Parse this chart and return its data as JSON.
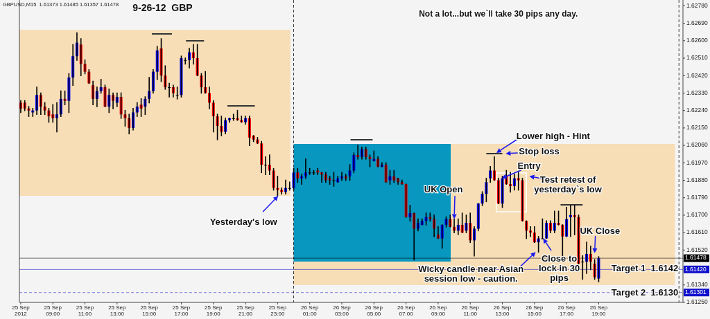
{
  "chart_data": {
    "type": "candlestick",
    "title": "9-26-12  GBP",
    "subtitle": "GBPUSD,M15  1.61373 1.61485 1.61357 1.61478",
    "x": [
      "2012-09-25T07:00",
      "2012-09-25T07:15",
      "2012-09-25T07:30",
      "2012-09-25T07:45",
      "2012-09-25T08:00",
      "2012-09-25T08:15",
      "2012-09-25T08:30",
      "2012-09-25T08:45",
      "2012-09-25T09:00",
      "2012-09-25T09:15",
      "2012-09-25T09:30",
      "2012-09-25T09:45",
      "2012-09-25T10:00",
      "2012-09-25T10:15",
      "2012-09-25T10:30",
      "2012-09-25T10:45",
      "2012-09-25T11:00",
      "2012-09-25T11:15",
      "2012-09-25T11:30",
      "2012-09-25T11:45",
      "2012-09-25T12:00",
      "2012-09-25T12:15",
      "2012-09-25T12:30",
      "2012-09-25T12:45",
      "2012-09-25T13:00",
      "2012-09-25T13:15",
      "2012-09-25T13:30",
      "2012-09-25T13:45",
      "2012-09-25T14:00",
      "2012-09-25T14:15",
      "2012-09-25T14:30",
      "2012-09-25T14:45",
      "2012-09-25T15:00",
      "2012-09-25T15:15",
      "2012-09-25T15:30",
      "2012-09-25T15:45",
      "2012-09-25T16:00",
      "2012-09-25T16:15",
      "2012-09-25T16:30",
      "2012-09-25T16:45",
      "2012-09-25T17:00",
      "2012-09-25T17:15",
      "2012-09-25T17:30",
      "2012-09-25T17:45",
      "2012-09-25T18:00",
      "2012-09-25T18:15",
      "2012-09-25T18:30",
      "2012-09-25T18:45",
      "2012-09-25T19:00",
      "2012-09-25T19:15",
      "2012-09-25T19:30",
      "2012-09-25T19:45",
      "2012-09-25T20:00",
      "2012-09-25T20:15",
      "2012-09-25T20:30",
      "2012-09-25T20:45",
      "2012-09-25T21:00",
      "2012-09-25T21:15",
      "2012-09-25T21:30",
      "2012-09-25T21:45",
      "2012-09-25T22:00",
      "2012-09-25T22:15",
      "2012-09-25T22:30",
      "2012-09-25T22:45",
      "2012-09-25T23:00",
      "2012-09-25T23:15",
      "2012-09-25T23:30",
      "2012-09-25T23:45",
      "2012-09-26T00:00",
      "2012-09-26T00:15",
      "2012-09-26T00:30",
      "2012-09-26T00:45",
      "2012-09-26T01:00",
      "2012-09-26T01:15",
      "2012-09-26T01:30",
      "2012-09-26T01:45",
      "2012-09-26T02:00",
      "2012-09-26T02:15",
      "2012-09-26T02:30",
      "2012-09-26T02:45",
      "2012-09-26T03:00",
      "2012-09-26T03:15",
      "2012-09-26T03:30",
      "2012-09-26T03:45",
      "2012-09-26T04:00",
      "2012-09-26T04:15",
      "2012-09-26T04:30",
      "2012-09-26T04:45",
      "2012-09-26T05:00",
      "2012-09-26T05:15",
      "2012-09-26T05:30",
      "2012-09-26T05:45",
      "2012-09-26T06:00",
      "2012-09-26T06:15",
      "2012-09-26T06:30",
      "2012-09-26T06:45",
      "2012-09-26T07:00",
      "2012-09-26T07:15",
      "2012-09-26T07:30",
      "2012-09-26T07:45",
      "2012-09-26T08:00",
      "2012-09-26T08:15",
      "2012-09-26T08:30",
      "2012-09-26T08:45",
      "2012-09-26T09:00",
      "2012-09-26T09:15",
      "2012-09-26T09:30",
      "2012-09-26T09:45",
      "2012-09-26T10:00",
      "2012-09-26T10:15",
      "2012-09-26T10:30",
      "2012-09-26T10:45",
      "2012-09-26T11:00",
      "2012-09-26T11:15",
      "2012-09-26T11:30",
      "2012-09-26T11:45",
      "2012-09-26T12:00",
      "2012-09-26T12:15",
      "2012-09-26T12:30",
      "2012-09-26T12:45",
      "2012-09-26T13:00",
      "2012-09-26T13:15",
      "2012-09-26T13:30",
      "2012-09-26T13:45",
      "2012-09-26T14:00",
      "2012-09-26T14:15",
      "2012-09-26T14:30",
      "2012-09-26T14:45",
      "2012-09-26T15:00",
      "2012-09-26T15:15",
      "2012-09-26T15:30",
      "2012-09-26T15:45",
      "2012-09-26T16:00",
      "2012-09-26T16:15",
      "2012-09-26T16:30",
      "2012-09-26T16:45",
      "2012-09-26T17:00",
      "2012-09-26T17:15",
      "2012-09-26T17:30",
      "2012-09-26T17:45",
      "2012-09-26T18:00",
      "2012-09-26T18:15",
      "2012-09-26T18:30",
      "2012-09-26T18:45",
      "2012-09-26T19:00"
    ],
    "ohlc": [
      [
        1.6228,
        1.6229,
        1.6223,
        1.6225
      ],
      [
        1.6228,
        1.6229,
        1.6224,
        1.6225
      ],
      [
        1.6225,
        1.6226,
        1.6221,
        1.6224
      ],
      [
        1.6223,
        1.6225,
        1.6221,
        1.6224
      ],
      [
        1.6224,
        1.6236,
        1.6222,
        1.6232
      ],
      [
        1.6232,
        1.6233,
        1.6222,
        1.6226
      ],
      [
        1.6226,
        1.6228,
        1.6222,
        1.6224
      ],
      [
        1.6224,
        1.6225,
        1.6218,
        1.6221
      ],
      [
        1.6222,
        1.6227,
        1.6218,
        1.622
      ],
      [
        1.622,
        1.6228,
        1.6213,
        1.6222
      ],
      [
        1.6222,
        1.6234,
        1.6221,
        1.623
      ],
      [
        1.623,
        1.6234,
        1.6227,
        1.6229
      ],
      [
        1.6229,
        1.6243,
        1.6223,
        1.6241
      ],
      [
        1.6241,
        1.6258,
        1.6237,
        1.6252
      ],
      [
        1.6252,
        1.6264,
        1.625,
        1.6259
      ],
      [
        1.6258,
        1.6261,
        1.6242,
        1.6248
      ],
      [
        1.6248,
        1.625,
        1.6243,
        1.6244
      ],
      [
        1.6244,
        1.6245,
        1.6238,
        1.6238
      ],
      [
        1.6237,
        1.6239,
        1.6227,
        1.623
      ],
      [
        1.623,
        1.6236,
        1.6226,
        1.6234
      ],
      [
        1.6234,
        1.624,
        1.6233,
        1.6236
      ],
      [
        1.6236,
        1.6237,
        1.6226,
        1.6226
      ],
      [
        1.6226,
        1.6235,
        1.6223,
        1.6232
      ],
      [
        1.6232,
        1.6233,
        1.6225,
        1.6229
      ],
      [
        1.6228,
        1.6233,
        1.6226,
        1.6231
      ],
      [
        1.6231,
        1.6233,
        1.622,
        1.6222
      ],
      [
        1.6222,
        1.6224,
        1.6216,
        1.622
      ],
      [
        1.622,
        1.6222,
        1.6212,
        1.6215
      ],
      [
        1.6215,
        1.6225,
        1.6214,
        1.6223
      ],
      [
        1.6223,
        1.6228,
        1.6221,
        1.6226
      ],
      [
        1.6227,
        1.623,
        1.6221,
        1.6225
      ],
      [
        1.6226,
        1.6231,
        1.6222,
        1.623
      ],
      [
        1.623,
        1.6241,
        1.6228,
        1.6234
      ],
      [
        1.6234,
        1.6245,
        1.6233,
        1.6244
      ],
      [
        1.6244,
        1.6257,
        1.624,
        1.6255
      ],
      [
        1.6256,
        1.6261,
        1.6239,
        1.6242
      ],
      [
        1.6242,
        1.6247,
        1.6235,
        1.6236
      ],
      [
        1.6236,
        1.6238,
        1.6231,
        1.6236
      ],
      [
        1.6236,
        1.6237,
        1.6231,
        1.6233
      ],
      [
        1.6232,
        1.6236,
        1.623,
        1.6232
      ],
      [
        1.6232,
        1.6252,
        1.6231,
        1.6251
      ],
      [
        1.625,
        1.6251,
        1.6248,
        1.625
      ],
      [
        1.625,
        1.6256,
        1.6246,
        1.6254
      ],
      [
        1.6254,
        1.6258,
        1.6248,
        1.6251
      ],
      [
        1.6251,
        1.6258,
        1.6242,
        1.6242
      ],
      [
        1.6242,
        1.6243,
        1.6233,
        1.6236
      ],
      [
        1.6236,
        1.6244,
        1.6233,
        1.6233
      ],
      [
        1.6233,
        1.6236,
        1.6225,
        1.6228
      ],
      [
        1.6228,
        1.6229,
        1.6213,
        1.6221
      ],
      [
        1.6221,
        1.6222,
        1.6209,
        1.6216
      ],
      [
        1.6216,
        1.6221,
        1.6211,
        1.6213
      ],
      [
        1.6213,
        1.622,
        1.6212,
        1.6219
      ],
      [
        1.6219,
        1.622,
        1.6218,
        1.622
      ],
      [
        1.622,
        1.6222,
        1.6219,
        1.622
      ],
      [
        1.622,
        1.6224,
        1.6219,
        1.6219
      ],
      [
        1.6219,
        1.6221,
        1.6218,
        1.6218
      ],
      [
        1.6218,
        1.6221,
        1.6217,
        1.622
      ],
      [
        1.622,
        1.6221,
        1.6206,
        1.621
      ],
      [
        1.6211,
        1.6211,
        1.6208,
        1.6209
      ],
      [
        1.6209,
        1.621,
        1.6207,
        1.6207
      ],
      [
        1.6207,
        1.6208,
        1.6192,
        1.6196
      ],
      [
        1.6196,
        1.62,
        1.6191,
        1.6196
      ],
      [
        1.6196,
        1.6201,
        1.6191,
        1.6193
      ],
      [
        1.6193,
        1.6194,
        1.6183,
        1.6184
      ],
      [
        1.6184,
        1.619,
        1.618,
        1.6183
      ],
      [
        1.6183,
        1.6184,
        1.6181,
        1.6182
      ],
      [
        1.6182,
        1.6188,
        1.6181,
        1.6184
      ],
      [
        1.6184,
        1.6187,
        1.6183,
        1.6184
      ],
      [
        1.6184,
        1.6194,
        1.6183,
        1.6192
      ],
      [
        1.6192,
        1.6194,
        1.6187,
        1.6189
      ],
      [
        1.6189,
        1.6191,
        1.6186,
        1.619
      ],
      [
        1.619,
        1.6199,
        1.6189,
        1.6192
      ],
      [
        1.6192,
        1.6194,
        1.6191,
        1.6192
      ],
      [
        1.6192,
        1.6193,
        1.6191,
        1.6192
      ],
      [
        1.6193,
        1.6194,
        1.6191,
        1.6192
      ],
      [
        1.6192,
        1.6192,
        1.6187,
        1.6191
      ],
      [
        1.6191,
        1.6192,
        1.6187,
        1.6188
      ],
      [
        1.6189,
        1.619,
        1.6186,
        1.6188
      ],
      [
        1.6188,
        1.6192,
        1.6185,
        1.6188
      ],
      [
        1.6187,
        1.619,
        1.6187,
        1.6189
      ],
      [
        1.6189,
        1.6192,
        1.6188,
        1.619
      ],
      [
        1.619,
        1.6191,
        1.6188,
        1.6189
      ],
      [
        1.619,
        1.6196,
        1.6188,
        1.6193
      ],
      [
        1.6193,
        1.6202,
        1.6192,
        1.6201
      ],
      [
        1.6201,
        1.6206,
        1.6199,
        1.62
      ],
      [
        1.62,
        1.6205,
        1.6199,
        1.6204
      ],
      [
        1.6204,
        1.6205,
        1.6199,
        1.62
      ],
      [
        1.62,
        1.6201,
        1.6195,
        1.6199
      ],
      [
        1.6198,
        1.6203,
        1.6198,
        1.6199
      ],
      [
        1.6199,
        1.62,
        1.6195,
        1.6195
      ],
      [
        1.6195,
        1.6197,
        1.6195,
        1.6196
      ],
      [
        1.6196,
        1.6197,
        1.6187,
        1.6187
      ],
      [
        1.6188,
        1.6193,
        1.6186,
        1.619
      ],
      [
        1.619,
        1.6193,
        1.6187,
        1.6188
      ],
      [
        1.6189,
        1.6189,
        1.6186,
        1.6187
      ],
      [
        1.6187,
        1.6188,
        1.6186,
        1.6186
      ],
      [
        1.6186,
        1.6186,
        1.6169,
        1.6169
      ],
      [
        1.6169,
        1.6175,
        1.6167,
        1.6171
      ],
      [
        1.6171,
        1.6171,
        1.6147,
        1.6163
      ],
      [
        1.6163,
        1.6168,
        1.6162,
        1.6166
      ],
      [
        1.6165,
        1.6168,
        1.6165,
        1.6167
      ],
      [
        1.6167,
        1.6171,
        1.6165,
        1.6169
      ],
      [
        1.6169,
        1.6171,
        1.6167,
        1.6168
      ],
      [
        1.6168,
        1.617,
        1.6159,
        1.6163
      ],
      [
        1.616,
        1.6164,
        1.6158,
        1.6158
      ],
      [
        1.6158,
        1.6165,
        1.6153,
        1.6165
      ],
      [
        1.6165,
        1.6169,
        1.6164,
        1.6168
      ],
      [
        1.6168,
        1.617,
        1.6164,
        1.6164
      ],
      [
        1.6164,
        1.6168,
        1.6161,
        1.6162
      ],
      [
        1.6162,
        1.6168,
        1.616,
        1.6165
      ],
      [
        1.6165,
        1.6171,
        1.6161,
        1.6161
      ],
      [
        1.6162,
        1.617,
        1.6161,
        1.6166
      ],
      [
        1.6166,
        1.6171,
        1.6156,
        1.6157
      ],
      [
        1.6157,
        1.6164,
        1.6149,
        1.6163
      ],
      [
        1.6163,
        1.6176,
        1.6162,
        1.6176
      ],
      [
        1.6176,
        1.6182,
        1.6175,
        1.6181
      ],
      [
        1.6181,
        1.6189,
        1.6177,
        1.6187
      ],
      [
        1.6189,
        1.6195,
        1.6187,
        1.6193
      ],
      [
        1.6193,
        1.62,
        1.6188,
        1.6188
      ],
      [
        1.6188,
        1.6189,
        1.6176,
        1.6176
      ],
      [
        1.6176,
        1.619,
        1.6174,
        1.6189
      ],
      [
        1.619,
        1.6193,
        1.6186,
        1.6186
      ],
      [
        1.6186,
        1.6192,
        1.6182,
        1.6185
      ],
      [
        1.6185,
        1.6191,
        1.6183,
        1.6189
      ],
      [
        1.6189,
        1.6192,
        1.6183,
        1.6188
      ],
      [
        1.6188,
        1.6189,
        1.6167,
        1.6167
      ],
      [
        1.6167,
        1.6167,
        1.6158,
        1.6162
      ],
      [
        1.6162,
        1.6164,
        1.6159,
        1.6161
      ],
      [
        1.6161,
        1.6164,
        1.6156,
        1.6156
      ],
      [
        1.6156,
        1.6159,
        1.6151,
        1.6158
      ],
      [
        1.6158,
        1.6168,
        1.6158,
        1.6158
      ],
      [
        1.6158,
        1.6167,
        1.6158,
        1.6166
      ],
      [
        1.6166,
        1.6167,
        1.6161,
        1.6162
      ],
      [
        1.6162,
        1.6172,
        1.6161,
        1.6166
      ],
      [
        1.6166,
        1.6172,
        1.6165,
        1.6165
      ],
      [
        1.6165,
        1.6165,
        1.6147,
        1.6159
      ],
      [
        1.6159,
        1.6174,
        1.6159,
        1.6168
      ],
      [
        1.6169,
        1.6175,
        1.6159,
        1.617
      ],
      [
        1.617,
        1.6175,
        1.616,
        1.6169
      ],
      [
        1.6169,
        1.617,
        1.6145,
        1.6145
      ],
      [
        1.6146,
        1.6149,
        1.6137,
        1.6146
      ],
      [
        1.6146,
        1.6156,
        1.614,
        1.615
      ],
      [
        1.615,
        1.6154,
        1.6142,
        1.6146
      ],
      [
        1.6145,
        1.6147,
        1.6137,
        1.6138
      ],
      [
        1.61373,
        1.61485,
        1.61357,
        1.61478
      ]
    ],
    "xlim": [
      "2012-09-25T06:55",
      "2012-09-27T00:15"
    ],
    "xticks": [
      {
        "value": "2012-09-25T07:00",
        "label": "25 Sep 2012"
      },
      {
        "value": "2012-09-25T09:00",
        "label": "25 Sep 09:00"
      },
      {
        "value": "2012-09-25T11:00",
        "label": "25 Sep 11:00"
      },
      {
        "value": "2012-09-25T13:00",
        "label": "25 Sep 13:00"
      },
      {
        "value": "2012-09-25T15:00",
        "label": "25 Sep 15:00"
      },
      {
        "value": "2012-09-25T17:00",
        "label": "25 Sep 17:00"
      },
      {
        "value": "2012-09-25T19:00",
        "label": "25 Sep 19:00"
      },
      {
        "value": "2012-09-25T21:00",
        "label": "25 Sep 21:00"
      },
      {
        "value": "2012-09-25T23:00",
        "label": "25 Sep 23:00"
      },
      {
        "value": "2012-09-26T01:00",
        "label": "26 Sep 01:00"
      },
      {
        "value": "2012-09-26T03:00",
        "label": "26 Sep 03:00"
      },
      {
        "value": "2012-09-26T05:00",
        "label": "26 Sep 05:00"
      },
      {
        "value": "2012-09-26T07:00",
        "label": "26 Sep 07:00"
      },
      {
        "value": "2012-09-26T09:00",
        "label": "26 Sep 09:00"
      },
      {
        "value": "2012-09-26T11:00",
        "label": "26 Sep 11:00"
      },
      {
        "value": "2012-09-26T13:00",
        "label": "26 Sep 13:00"
      },
      {
        "value": "2012-09-26T15:00",
        "label": "26 Sep 15:00"
      },
      {
        "value": "2012-09-26T17:00",
        "label": "26 Sep 17:00"
      },
      {
        "value": "2012-09-26T19:00",
        "label": "26 Sep 19:00"
      }
    ],
    "ylim": [
      1.6125,
      1.6281
    ],
    "yticks": [
      {
        "value": 1.6278,
        "label": "1.62780"
      },
      {
        "value": 1.6269,
        "label": "1.62690"
      },
      {
        "value": 1.626,
        "label": "1.62600"
      },
      {
        "value": 1.6251,
        "label": "1.62510"
      },
      {
        "value": 1.6242,
        "label": "1.62420"
      },
      {
        "value": 1.6233,
        "label": "1.62330"
      },
      {
        "value": 1.6224,
        "label": "1.62240"
      },
      {
        "value": 1.6215,
        "label": "1.62150"
      },
      {
        "value": 1.6206,
        "label": "1.62060"
      },
      {
        "value": 1.6197,
        "label": "1.61970"
      },
      {
        "value": 1.6188,
        "label": "1.61880"
      },
      {
        "value": 1.6179,
        "label": "1.61790"
      },
      {
        "value": 1.617,
        "label": "1.61700"
      },
      {
        "value": 1.6161,
        "label": "1.61610"
      },
      {
        "value": 1.6152,
        "label": "1.61520"
      },
      {
        "value": 1.6134,
        "label": "1.61340"
      },
      {
        "value": 1.6125,
        "label": "1.61250"
      }
    ],
    "ref_lines": [
      {
        "axis": "y",
        "value": 1.61478,
        "label": "1.61478",
        "color": "#000000"
      },
      {
        "axis": "y",
        "value": 1.6142,
        "label": "1.61420",
        "color": "#1010cc"
      },
      {
        "axis": "y",
        "value": 1.61301,
        "label": "1.61301",
        "color": "#1010cc",
        "line_style": "dashed"
      },
      {
        "axis": "x",
        "value": "2012-09-26T00:00",
        "color": "#000000",
        "line_style": "dashed"
      },
      {
        "axis": "x",
        "value": "2012-09-27T00:00",
        "color": "#000000",
        "line_style": "dashed"
      }
    ],
    "annotations": [
      "Not a lot...but we`ll take 30 pips any day.",
      {
        "text": "Yesterday's low",
        "x": "2012-09-25T23:15",
        "y": 1.6181
      },
      {
        "text": "UK Open",
        "x": "2012-09-26T10:00",
        "y": 1.6168
      },
      "Lower high - Hint",
      "Stop loss",
      {
        "text": "Entry",
        "x": "2012-09-26T13:00",
        "y": 1.6189
      },
      {
        "text": "Test retest of yesterday`s low",
        "x": "2012-09-26T14:15",
        "y": 1.6189
      },
      {
        "text": "Wicky candle near Asian session low - caution.",
        "x": "2012-09-26T15:15",
        "y": 1.6151
      },
      {
        "text": "Close to lock in 30 pips",
        "x": "2012-09-26T15:30",
        "y": 1.6158
      },
      {
        "text": "UK Close",
        "x": "2012-09-26T18:45",
        "y": 1.6149
      },
      "Target 1  1.6142",
      "Target 2  1.6130"
    ]
  }
}
